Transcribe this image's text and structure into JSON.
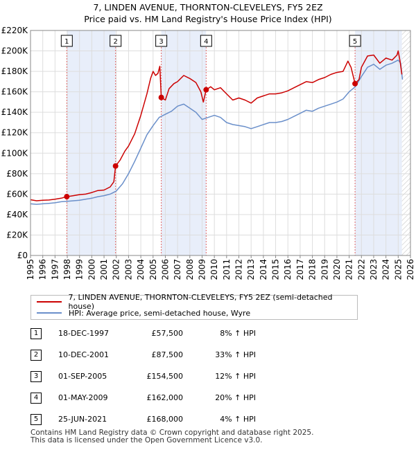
{
  "title_line1": "7, LINDEN AVENUE, THORNTON-CLEVELEYS, FY5 2EZ",
  "title_line2": "Price paid vs. HM Land Registry's House Price Index (HPI)",
  "chart_data": {
    "type": "line",
    "xlim": [
      1995,
      2026
    ],
    "ylim": [
      0,
      220000
    ],
    "y_ticks": [
      0,
      20000,
      40000,
      60000,
      80000,
      100000,
      120000,
      140000,
      160000,
      180000,
      200000,
      220000
    ],
    "y_tick_labels": [
      "£0",
      "£20K",
      "£40K",
      "£60K",
      "£80K",
      "£100K",
      "£120K",
      "£140K",
      "£160K",
      "£180K",
      "£200K",
      "£220K"
    ],
    "x_ticks": [
      1995,
      1996,
      1997,
      1998,
      1999,
      2000,
      2001,
      2002,
      2003,
      2004,
      2005,
      2006,
      2007,
      2008,
      2009,
      2010,
      2011,
      2012,
      2013,
      2014,
      2015,
      2016,
      2017,
      2018,
      2019,
      2020,
      2021,
      2022,
      2023,
      2024,
      2025,
      2026
    ],
    "x_tick_labels": [
      "1995",
      "1996",
      "1997",
      "1998",
      "1999",
      "2000",
      "2001",
      "2002",
      "2003",
      "2004",
      "2005",
      "2006",
      "2007",
      "2008",
      "2009",
      "2010",
      "2011",
      "2012",
      "2013",
      "2014",
      "2015",
      "2016",
      "2017",
      "2018",
      "2019",
      "2020",
      "2021",
      "2022",
      "2023",
      "2024",
      "2025",
      "2026"
    ],
    "shaded_periods": [
      [
        1997.96,
        2001.94
      ],
      [
        2005.67,
        2009.33
      ],
      [
        2021.48,
        2025.3
      ]
    ],
    "hatch_start": 2025.3,
    "series": [
      {
        "name": "7, LINDEN AVENUE, THORNTON-CLEVELEYS, FY5 2EZ (semi-detached house)",
        "color": "#cc0000",
        "points": [
          [
            1995.0,
            54500
          ],
          [
            1995.5,
            53500
          ],
          [
            1996.0,
            54000
          ],
          [
            1996.5,
            54200
          ],
          [
            1997.0,
            55000
          ],
          [
            1997.5,
            56000
          ],
          [
            1997.96,
            57500
          ],
          [
            1998.5,
            58500
          ],
          [
            1999.0,
            59500
          ],
          [
            1999.5,
            60000
          ],
          [
            2000.0,
            61500
          ],
          [
            2000.5,
            63500
          ],
          [
            2001.0,
            64000
          ],
          [
            2001.5,
            67000
          ],
          [
            2001.8,
            72000
          ],
          [
            2001.94,
            87500
          ],
          [
            2002.3,
            93000
          ],
          [
            2002.7,
            102000
          ],
          [
            2003.0,
            107000
          ],
          [
            2003.5,
            119000
          ],
          [
            2004.0,
            137000
          ],
          [
            2004.5,
            158000
          ],
          [
            2004.8,
            173000
          ],
          [
            2005.0,
            180000
          ],
          [
            2005.2,
            176000
          ],
          [
            2005.4,
            178000
          ],
          [
            2005.55,
            185000
          ],
          [
            2005.67,
            154500
          ],
          [
            2006.0,
            152000
          ],
          [
            2006.3,
            163000
          ],
          [
            2006.7,
            168000
          ],
          [
            2007.0,
            170000
          ],
          [
            2007.5,
            176000
          ],
          [
            2008.0,
            173000
          ],
          [
            2008.5,
            169000
          ],
          [
            2008.9,
            160000
          ],
          [
            2009.1,
            150000
          ],
          [
            2009.33,
            162000
          ],
          [
            2009.7,
            165000
          ],
          [
            2010.0,
            162000
          ],
          [
            2010.5,
            164000
          ],
          [
            2011.0,
            158000
          ],
          [
            2011.5,
            152000
          ],
          [
            2012.0,
            154000
          ],
          [
            2012.5,
            152000
          ],
          [
            2013.0,
            149000
          ],
          [
            2013.5,
            154000
          ],
          [
            2014.0,
            156000
          ],
          [
            2014.5,
            158000
          ],
          [
            2015.0,
            158000
          ],
          [
            2015.5,
            159000
          ],
          [
            2016.0,
            161000
          ],
          [
            2016.5,
            164000
          ],
          [
            2017.0,
            167000
          ],
          [
            2017.5,
            170000
          ],
          [
            2018.0,
            169000
          ],
          [
            2018.5,
            172000
          ],
          [
            2019.0,
            174000
          ],
          [
            2019.5,
            177000
          ],
          [
            2020.0,
            179000
          ],
          [
            2020.5,
            180000
          ],
          [
            2020.9,
            190000
          ],
          [
            2021.15,
            184000
          ],
          [
            2021.48,
            168000
          ],
          [
            2021.8,
            172000
          ],
          [
            2022.0,
            184000
          ],
          [
            2022.5,
            195000
          ],
          [
            2023.0,
            196000
          ],
          [
            2023.5,
            188000
          ],
          [
            2024.0,
            193000
          ],
          [
            2024.5,
            191000
          ],
          [
            2024.9,
            196000
          ],
          [
            2025.0,
            200000
          ],
          [
            2025.15,
            190000
          ],
          [
            2025.3,
            177000
          ]
        ]
      },
      {
        "name": "HPI: Average price, semi-detached house, Wyre",
        "color": "#6a8fca",
        "points": [
          [
            1995.0,
            50500
          ],
          [
            1995.5,
            50000
          ],
          [
            1996.0,
            50500
          ],
          [
            1996.5,
            51000
          ],
          [
            1997.0,
            51500
          ],
          [
            1997.5,
            52500
          ],
          [
            1998.0,
            53000
          ],
          [
            1998.5,
            53500
          ],
          [
            1999.0,
            54000
          ],
          [
            1999.5,
            55000
          ],
          [
            2000.0,
            56000
          ],
          [
            2000.5,
            57500
          ],
          [
            2001.0,
            58500
          ],
          [
            2001.5,
            60000
          ],
          [
            2002.0,
            63000
          ],
          [
            2002.5,
            70000
          ],
          [
            2003.0,
            80000
          ],
          [
            2003.5,
            92000
          ],
          [
            2004.0,
            105000
          ],
          [
            2004.5,
            118000
          ],
          [
            2005.0,
            127000
          ],
          [
            2005.5,
            135000
          ],
          [
            2006.0,
            138000
          ],
          [
            2006.5,
            141000
          ],
          [
            2007.0,
            146000
          ],
          [
            2007.5,
            148000
          ],
          [
            2008.0,
            144000
          ],
          [
            2008.5,
            140000
          ],
          [
            2009.0,
            133000
          ],
          [
            2009.5,
            135000
          ],
          [
            2010.0,
            137000
          ],
          [
            2010.5,
            135000
          ],
          [
            2011.0,
            130000
          ],
          [
            2011.5,
            128000
          ],
          [
            2012.0,
            127000
          ],
          [
            2012.5,
            126000
          ],
          [
            2013.0,
            124000
          ],
          [
            2013.5,
            126000
          ],
          [
            2014.0,
            128000
          ],
          [
            2014.5,
            130000
          ],
          [
            2015.0,
            130000
          ],
          [
            2015.5,
            131000
          ],
          [
            2016.0,
            133000
          ],
          [
            2016.5,
            136000
          ],
          [
            2017.0,
            139000
          ],
          [
            2017.5,
            142000
          ],
          [
            2018.0,
            141000
          ],
          [
            2018.5,
            144000
          ],
          [
            2019.0,
            146000
          ],
          [
            2019.5,
            148000
          ],
          [
            2020.0,
            150000
          ],
          [
            2020.5,
            153000
          ],
          [
            2021.0,
            160000
          ],
          [
            2021.5,
            165000
          ],
          [
            2022.0,
            175000
          ],
          [
            2022.5,
            184000
          ],
          [
            2023.0,
            187000
          ],
          [
            2023.5,
            182000
          ],
          [
            2024.0,
            186000
          ],
          [
            2024.5,
            188000
          ],
          [
            2025.0,
            191000
          ],
          [
            2025.2,
            188000
          ],
          [
            2025.35,
            172000
          ]
        ]
      }
    ],
    "sales_markers": [
      {
        "label": "1",
        "x": 1997.96,
        "y": 57500
      },
      {
        "label": "2",
        "x": 2001.94,
        "y": 87500
      },
      {
        "label": "3",
        "x": 2005.67,
        "y": 154500
      },
      {
        "label": "4",
        "x": 2009.33,
        "y": 162000
      },
      {
        "label": "5",
        "x": 2021.48,
        "y": 168000
      }
    ]
  },
  "legend": {
    "red_label": "7, LINDEN AVENUE, THORNTON-CLEVELEYS, FY5 2EZ (semi-detached house)",
    "blue_label": "HPI: Average price, semi-detached house, Wyre",
    "red_color": "#cc0000",
    "blue_color": "#6a8fca"
  },
  "sales": [
    {
      "num": "1",
      "date": "18-DEC-1997",
      "price": "£57,500",
      "hpi": "8% ↑ HPI"
    },
    {
      "num": "2",
      "date": "10-DEC-2001",
      "price": "£87,500",
      "hpi": "33% ↑ HPI"
    },
    {
      "num": "3",
      "date": "01-SEP-2005",
      "price": "£154,500",
      "hpi": "12% ↑ HPI"
    },
    {
      "num": "4",
      "date": "01-MAY-2009",
      "price": "£162,000",
      "hpi": "20% ↑ HPI"
    },
    {
      "num": "5",
      "date": "25-JUN-2021",
      "price": "£168,000",
      "hpi": "4% ↑ HPI"
    }
  ],
  "footer": {
    "line1": "Contains HM Land Registry data © Crown copyright and database right 2025.",
    "line2": "This data is licensed under the Open Government Licence v3.0."
  }
}
